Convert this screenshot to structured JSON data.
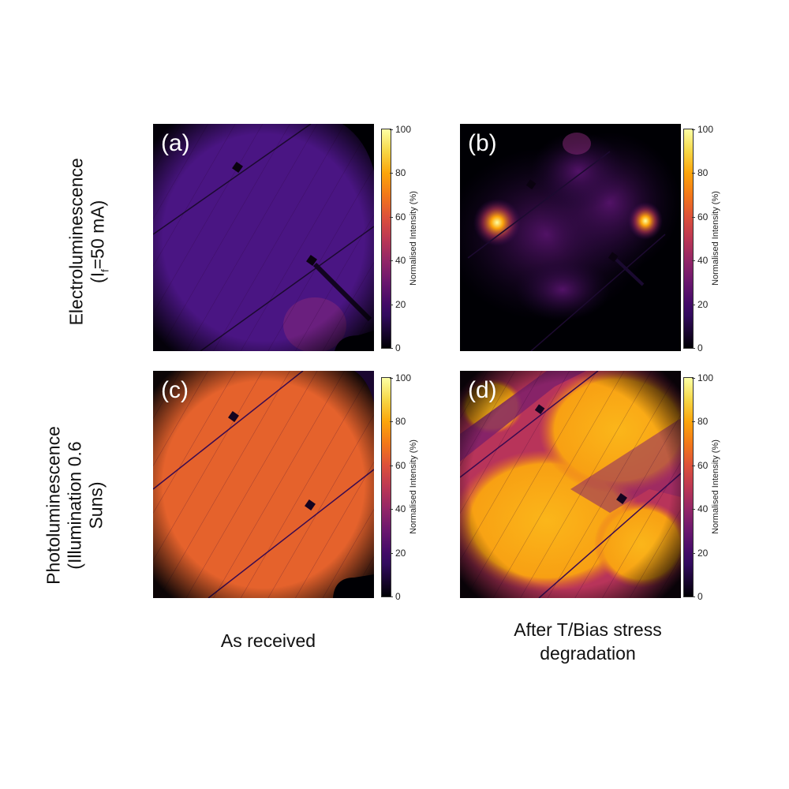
{
  "row_labels": {
    "el_line1": "Electroluminescence",
    "el_line2_prefix": "(I",
    "el_line2_sub": "f",
    "el_line2_suffix": "=50 mA)",
    "pl_line1": "Photoluminescence",
    "pl_line2": "(Illumination 0.6",
    "pl_line3": "Suns)"
  },
  "column_labels": {
    "left": "As received",
    "right_line1": "After T/Bias stress",
    "right_line2": "degradation"
  },
  "panels": [
    {
      "label": "(a)"
    },
    {
      "label": "(b)"
    },
    {
      "label": "(c)"
    },
    {
      "label": "(d)"
    }
  ],
  "colorbar": {
    "label": "Normalised Intensity (%)",
    "ticks": [
      "100",
      "80",
      "60",
      "40",
      "20",
      "0"
    ],
    "range": [
      0,
      100
    ],
    "colormap": "inferno"
  }
}
